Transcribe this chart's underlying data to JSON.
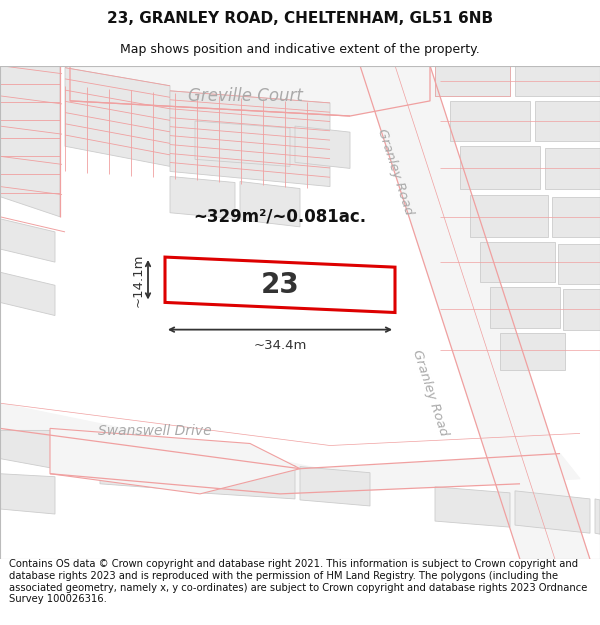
{
  "title": "23, GRANLEY ROAD, CHELTENHAM, GL51 6NB",
  "subtitle": "Map shows position and indicative extent of the property.",
  "footer": "Contains OS data © Crown copyright and database right 2021. This information is subject to Crown copyright and database rights 2023 and is reproduced with the permission of HM Land Registry. The polygons (including the associated geometry, namely x, y co-ordinates) are subject to Crown copyright and database rights 2023 Ordnance Survey 100026316.",
  "property_label": "23",
  "area_label": "~329m²/~0.081ac.",
  "dim_width": "~34.4m",
  "dim_height": "~14.1m",
  "title_fontsize": 11,
  "subtitle_fontsize": 9,
  "footer_fontsize": 7.2,
  "map_bg": "#ffffff",
  "building_fill": "#e8e8e8",
  "building_edge": "#cccccc",
  "road_line_color": "#f0a0a0",
  "highlight_fill": "#ffffff",
  "highlight_edge": "#dd0000",
  "street_label_color": "#aaaaaa",
  "dim_color": "#333333"
}
